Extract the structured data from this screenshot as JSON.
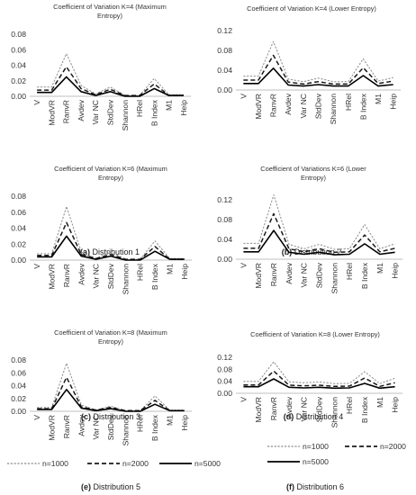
{
  "legend": [
    {
      "label": "n=1000",
      "style": "dotted"
    },
    {
      "label": "n=2000",
      "style": "dashed"
    },
    {
      "label": "n=5000",
      "style": "solid"
    }
  ],
  "colors": {
    "n1000": "#8c8c8c",
    "n2000": "#1a1a1a",
    "n5000": "#000000",
    "axis": "#bfbfbf"
  },
  "chart_data": [
    {
      "type": "line",
      "title": "Coefficient of Variation K=4 (Maximum Entropy)",
      "title_lines": [
        "Coefficient of Variation K=4 (Maximum",
        "Entropy)"
      ],
      "caption_letter": "(a)",
      "caption_text": "Distribution 1",
      "categories": [
        "V",
        "ModVR",
        "RanvR",
        "Avdev",
        "Var NC",
        "StdDev",
        "Shannon",
        "HRel",
        "B Index",
        "M1",
        "Heip"
      ],
      "ylim": [
        0,
        0.08
      ],
      "yticks": [
        "0.00",
        "0.02",
        "0.04",
        "0.06",
        "0.08"
      ],
      "series": [
        {
          "name": "n=1000",
          "values": [
            0.012,
            0.012,
            0.055,
            0.014,
            0.003,
            0.012,
            0.001,
            0.001,
            0.023,
            0.002,
            0.002
          ]
        },
        {
          "name": "n=2000",
          "values": [
            0.008,
            0.008,
            0.038,
            0.01,
            0.002,
            0.009,
            0.001,
            0.001,
            0.016,
            0.001,
            0.001
          ]
        },
        {
          "name": "n=5000",
          "values": [
            0.005,
            0.005,
            0.025,
            0.006,
            0.001,
            0.006,
            0.0,
            0.0,
            0.01,
            0.001,
            0.001
          ]
        }
      ]
    },
    {
      "type": "line",
      "title": "Coefficient of Variation K=4 (Lower Entropy)",
      "title_lines": [
        "Coefficient of Variation K=4 (Lower Entropy)"
      ],
      "caption_letter": "(b)",
      "caption_text": "Distribution 2",
      "categories": [
        "V",
        "ModVR",
        "RanvR",
        "Avdev",
        "Var NC",
        "StdDev",
        "Shannon",
        "HRel",
        "B Index",
        "M1",
        "Heip"
      ],
      "ylim": [
        0,
        0.12
      ],
      "yticks": [
        "0.00",
        "0.04",
        "0.08",
        "0.12"
      ],
      "series": [
        {
          "name": "n=1000",
          "values": [
            0.028,
            0.028,
            0.098,
            0.022,
            0.017,
            0.024,
            0.017,
            0.017,
            0.063,
            0.018,
            0.025
          ]
        },
        {
          "name": "n=2000",
          "values": [
            0.02,
            0.02,
            0.07,
            0.016,
            0.012,
            0.017,
            0.012,
            0.012,
            0.045,
            0.013,
            0.018
          ]
        },
        {
          "name": "n=5000",
          "values": [
            0.013,
            0.013,
            0.044,
            0.01,
            0.008,
            0.011,
            0.008,
            0.008,
            0.029,
            0.008,
            0.011
          ]
        }
      ]
    },
    {
      "type": "line",
      "title": "Coefficient of Variation K=6 (Maximum Entropy)",
      "title_lines": [
        "Coefficient of Variation K=6 (Maximum",
        "Entropy)"
      ],
      "caption_letter": "(c)",
      "caption_text": "Distribution 3",
      "categories": [
        "V",
        "ModVR",
        "RanvR",
        "Avdev",
        "Var NC",
        "StdDev",
        "Shannon",
        "HRel",
        "B Index",
        "M1",
        "Heip"
      ],
      "ylim": [
        0,
        0.08
      ],
      "yticks": [
        "0.00",
        "0.02",
        "0.04",
        "0.06",
        "0.08"
      ],
      "series": [
        {
          "name": "n=1000",
          "values": [
            0.008,
            0.008,
            0.067,
            0.01,
            0.002,
            0.01,
            0.001,
            0.001,
            0.024,
            0.002,
            0.002
          ]
        },
        {
          "name": "n=2000",
          "values": [
            0.006,
            0.006,
            0.047,
            0.007,
            0.002,
            0.007,
            0.001,
            0.001,
            0.017,
            0.001,
            0.001
          ]
        },
        {
          "name": "n=5000",
          "values": [
            0.004,
            0.004,
            0.03,
            0.005,
            0.001,
            0.005,
            0.0,
            0.0,
            0.011,
            0.001,
            0.001
          ]
        }
      ]
    },
    {
      "type": "line",
      "title": "Coefficient of Variations K=6 (Lower Entropy)",
      "title_lines": [
        "Coefficient of Variations K=6 (Lower",
        "Entropy)"
      ],
      "caption_letter": "(d)",
      "caption_text": "Distribution 4",
      "categories": [
        "V",
        "ModVR",
        "RanvR",
        "Avdev",
        "Var NC",
        "StdDev",
        "Shannon",
        "HRel",
        "B Index",
        "M1",
        "Heip"
      ],
      "ylim": [
        0,
        0.12
      ],
      "yticks": [
        "0.00",
        "0.04",
        "0.08",
        "0.12"
      ],
      "series": [
        {
          "name": "n=1000",
          "values": [
            0.032,
            0.032,
            0.13,
            0.03,
            0.021,
            0.03,
            0.02,
            0.021,
            0.07,
            0.021,
            0.031
          ]
        },
        {
          "name": "n=2000",
          "values": [
            0.022,
            0.022,
            0.092,
            0.021,
            0.015,
            0.021,
            0.014,
            0.015,
            0.049,
            0.015,
            0.022
          ]
        },
        {
          "name": "n=5000",
          "values": [
            0.015,
            0.015,
            0.058,
            0.014,
            0.01,
            0.014,
            0.009,
            0.01,
            0.031,
            0.01,
            0.014
          ]
        }
      ]
    },
    {
      "type": "line",
      "title": "Coefficient of Variation K=8 (Maximum Entropy)",
      "title_lines": [
        "Coefficient of Variation K=8 (Maximum",
        "Entropy)"
      ],
      "caption_letter": "(e)",
      "caption_text": "Distribution 5",
      "categories": [
        "V",
        "ModVR",
        "RanvR",
        "Avdev",
        "Var NC",
        "StdDev",
        "Shannon",
        "HRel",
        "B Index",
        "M1",
        "Heip"
      ],
      "ylim": [
        0,
        0.08
      ],
      "yticks": [
        "0.00",
        "0.02",
        "0.04",
        "0.06",
        "0.08"
      ],
      "series": [
        {
          "name": "n=1000",
          "values": [
            0.006,
            0.006,
            0.075,
            0.01,
            0.002,
            0.008,
            0.001,
            0.001,
            0.024,
            0.002,
            0.002
          ]
        },
        {
          "name": "n=2000",
          "values": [
            0.004,
            0.004,
            0.053,
            0.007,
            0.002,
            0.006,
            0.001,
            0.001,
            0.017,
            0.001,
            0.001
          ]
        },
        {
          "name": "n=5000",
          "values": [
            0.003,
            0.003,
            0.034,
            0.005,
            0.001,
            0.004,
            0.0,
            0.0,
            0.011,
            0.001,
            0.001
          ]
        }
      ]
    },
    {
      "type": "line",
      "title": "Coefficient of Variation K=8 (Lower Entropy)",
      "title_lines": [
        "Coefficient of Variation K=8 (Lower Entropy)"
      ],
      "caption_letter": "(f)",
      "caption_text": "Distribution 6",
      "categories": [
        "V",
        "ModVR",
        "RanvR",
        "Avdev",
        "Var NC",
        "StdDev",
        "Shannon",
        "HRel",
        "B Index",
        "M1",
        "Heip"
      ],
      "ylim": [
        0,
        0.12
      ],
      "yticks": [
        "0.00",
        "0.02",
        "0.04",
        "0.06",
        "0.08",
        "0.10",
        "0.12"
      ],
      "ytick_show": [
        "0.00",
        "0.04",
        "0.08",
        "0.12"
      ],
      "series": [
        {
          "name": "n=1000",
          "values": [
            0.04,
            0.04,
            0.105,
            0.038,
            0.035,
            0.038,
            0.032,
            0.033,
            0.072,
            0.032,
            0.05
          ]
        },
        {
          "name": "n=2000",
          "values": [
            0.028,
            0.028,
            0.074,
            0.027,
            0.025,
            0.027,
            0.023,
            0.024,
            0.051,
            0.023,
            0.035
          ]
        },
        {
          "name": "n=5000",
          "values": [
            0.022,
            0.022,
            0.048,
            0.02,
            0.018,
            0.02,
            0.017,
            0.018,
            0.033,
            0.017,
            0.022
          ]
        }
      ]
    }
  ]
}
